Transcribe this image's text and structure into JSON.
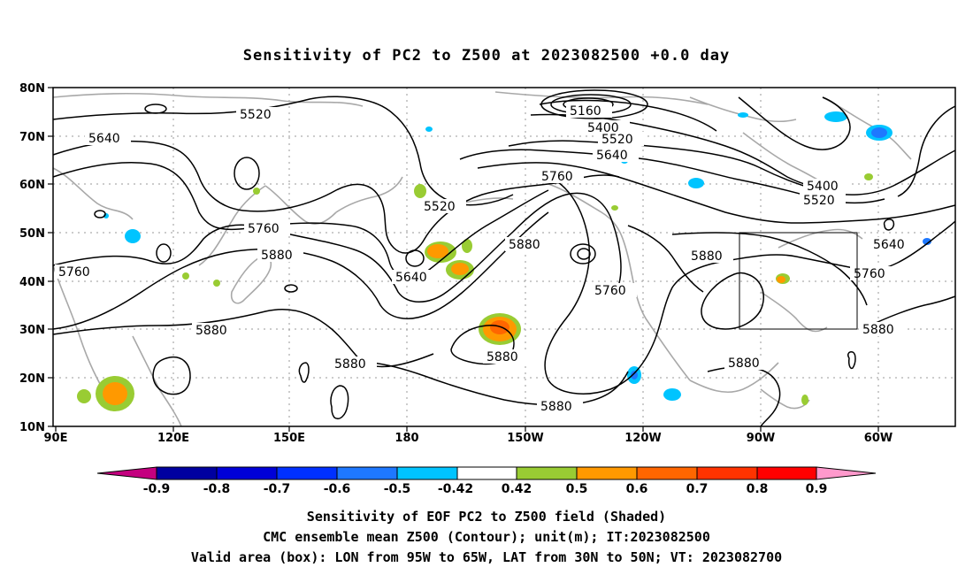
{
  "title": "Sensitivity of PC2 to Z500 at 2023082500 +0.0 day",
  "lat_labels": [
    "80N",
    "70N",
    "60N",
    "50N",
    "40N",
    "30N",
    "20N",
    "10N"
  ],
  "lon_labels": [
    "90E",
    "120E",
    "150E",
    "180",
    "150W",
    "120W",
    "90W",
    "60W"
  ],
  "contour_labels": [
    "5520",
    "5640",
    "5160",
    "5400",
    "5520",
    "5640",
    "5760",
    "5400",
    "5520",
    "5640",
    "5760",
    "5520",
    "5760",
    "5880",
    "5640",
    "5880",
    "5760",
    "5880",
    "5760",
    "5880",
    "5880",
    "5880",
    "5880",
    "5880",
    "5880"
  ],
  "colorbar": {
    "colors": [
      "#c4007f",
      "#0000a0",
      "#0000d8",
      "#0030ff",
      "#1e78ff",
      "#00c4ff",
      "#ffffff",
      "#99cc33",
      "#ff9900",
      "#ff6600",
      "#ff3300",
      "#ff0000",
      "#ff99cc"
    ],
    "tick_labels": [
      "-0.9",
      "-0.8",
      "-0.7",
      "-0.6",
      "-0.5",
      "-0.42",
      "0.42",
      "0.5",
      "0.6",
      "0.7",
      "0.8",
      "0.9"
    ]
  },
  "caption": {
    "line1": "Sensitivity of EOF PC2 to Z500 field (Shaded)",
    "line2": "CMC ensemble mean Z500 (Contour); unit(m); IT:2023082500",
    "line3": "Valid area (box): LON from 95W to 65W, LAT from 30N to 50N; VT: 2023082700"
  }
}
